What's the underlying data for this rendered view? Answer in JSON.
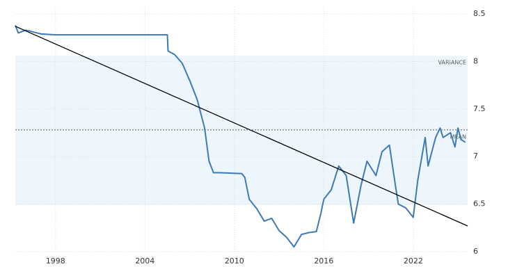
{
  "chart_data": {
    "type": "line",
    "x": [
      1995.3,
      1995.5,
      1996,
      1997,
      1998,
      2000,
      2002,
      2004,
      2005.5,
      2005.55,
      2006,
      2006.5,
      2007,
      2007.5,
      2008,
      2008.3,
      2008.6,
      2009,
      2010.5,
      2010.7,
      2011,
      2011.5,
      2012,
      2012.5,
      2013,
      2013.5,
      2014,
      2014.5,
      2015,
      2015.5,
      2015.8,
      2016,
      2016.5,
      2017,
      2017.5,
      2018,
      2018.5,
      2018.9,
      2019.5,
      2019.9,
      2020.4,
      2020.8,
      2021,
      2021.5,
      2022,
      2022.3,
      2022.8,
      2023,
      2023.5,
      2023.8,
      2024,
      2024.5,
      2024.8,
      2025,
      2025.2,
      2025.5
    ],
    "series": [
      {
        "color": "#3d7ab5",
        "values": [
          8.38,
          8.3,
          8.33,
          8.29,
          8.28,
          8.28,
          8.28,
          8.28,
          8.28,
          8.11,
          8.07,
          7.98,
          7.8,
          7.6,
          7.3,
          6.95,
          6.83,
          6.83,
          6.82,
          6.78,
          6.55,
          6.45,
          6.32,
          6.35,
          6.22,
          6.15,
          6.05,
          6.18,
          6.2,
          6.21,
          6.4,
          6.55,
          6.65,
          6.9,
          6.8,
          6.3,
          6.7,
          6.95,
          6.8,
          7.05,
          7.12,
          6.7,
          6.5,
          6.46,
          6.36,
          6.75,
          7.2,
          6.9,
          7.2,
          7.3,
          7.2,
          7.25,
          7.1,
          7.3,
          7.18,
          7.15
        ]
      }
    ],
    "trend": {
      "x": [
        1995.3,
        2025.65
      ],
      "values": [
        8.37,
        6.27
      ],
      "color": "#000000"
    },
    "mean": 7.28,
    "variance": [
      6.49,
      8.06
    ],
    "annotations": [
      "VARIANCE",
      "MEAN"
    ],
    "xlim": [
      1995.3,
      2025.65
    ],
    "xticks": [
      1998,
      2004,
      2010,
      2016,
      2022
    ],
    "ylim": [
      6,
      8.5
    ],
    "yticks": [
      6,
      6.5,
      7,
      7.5,
      8,
      8.5
    ],
    "grid": true
  }
}
